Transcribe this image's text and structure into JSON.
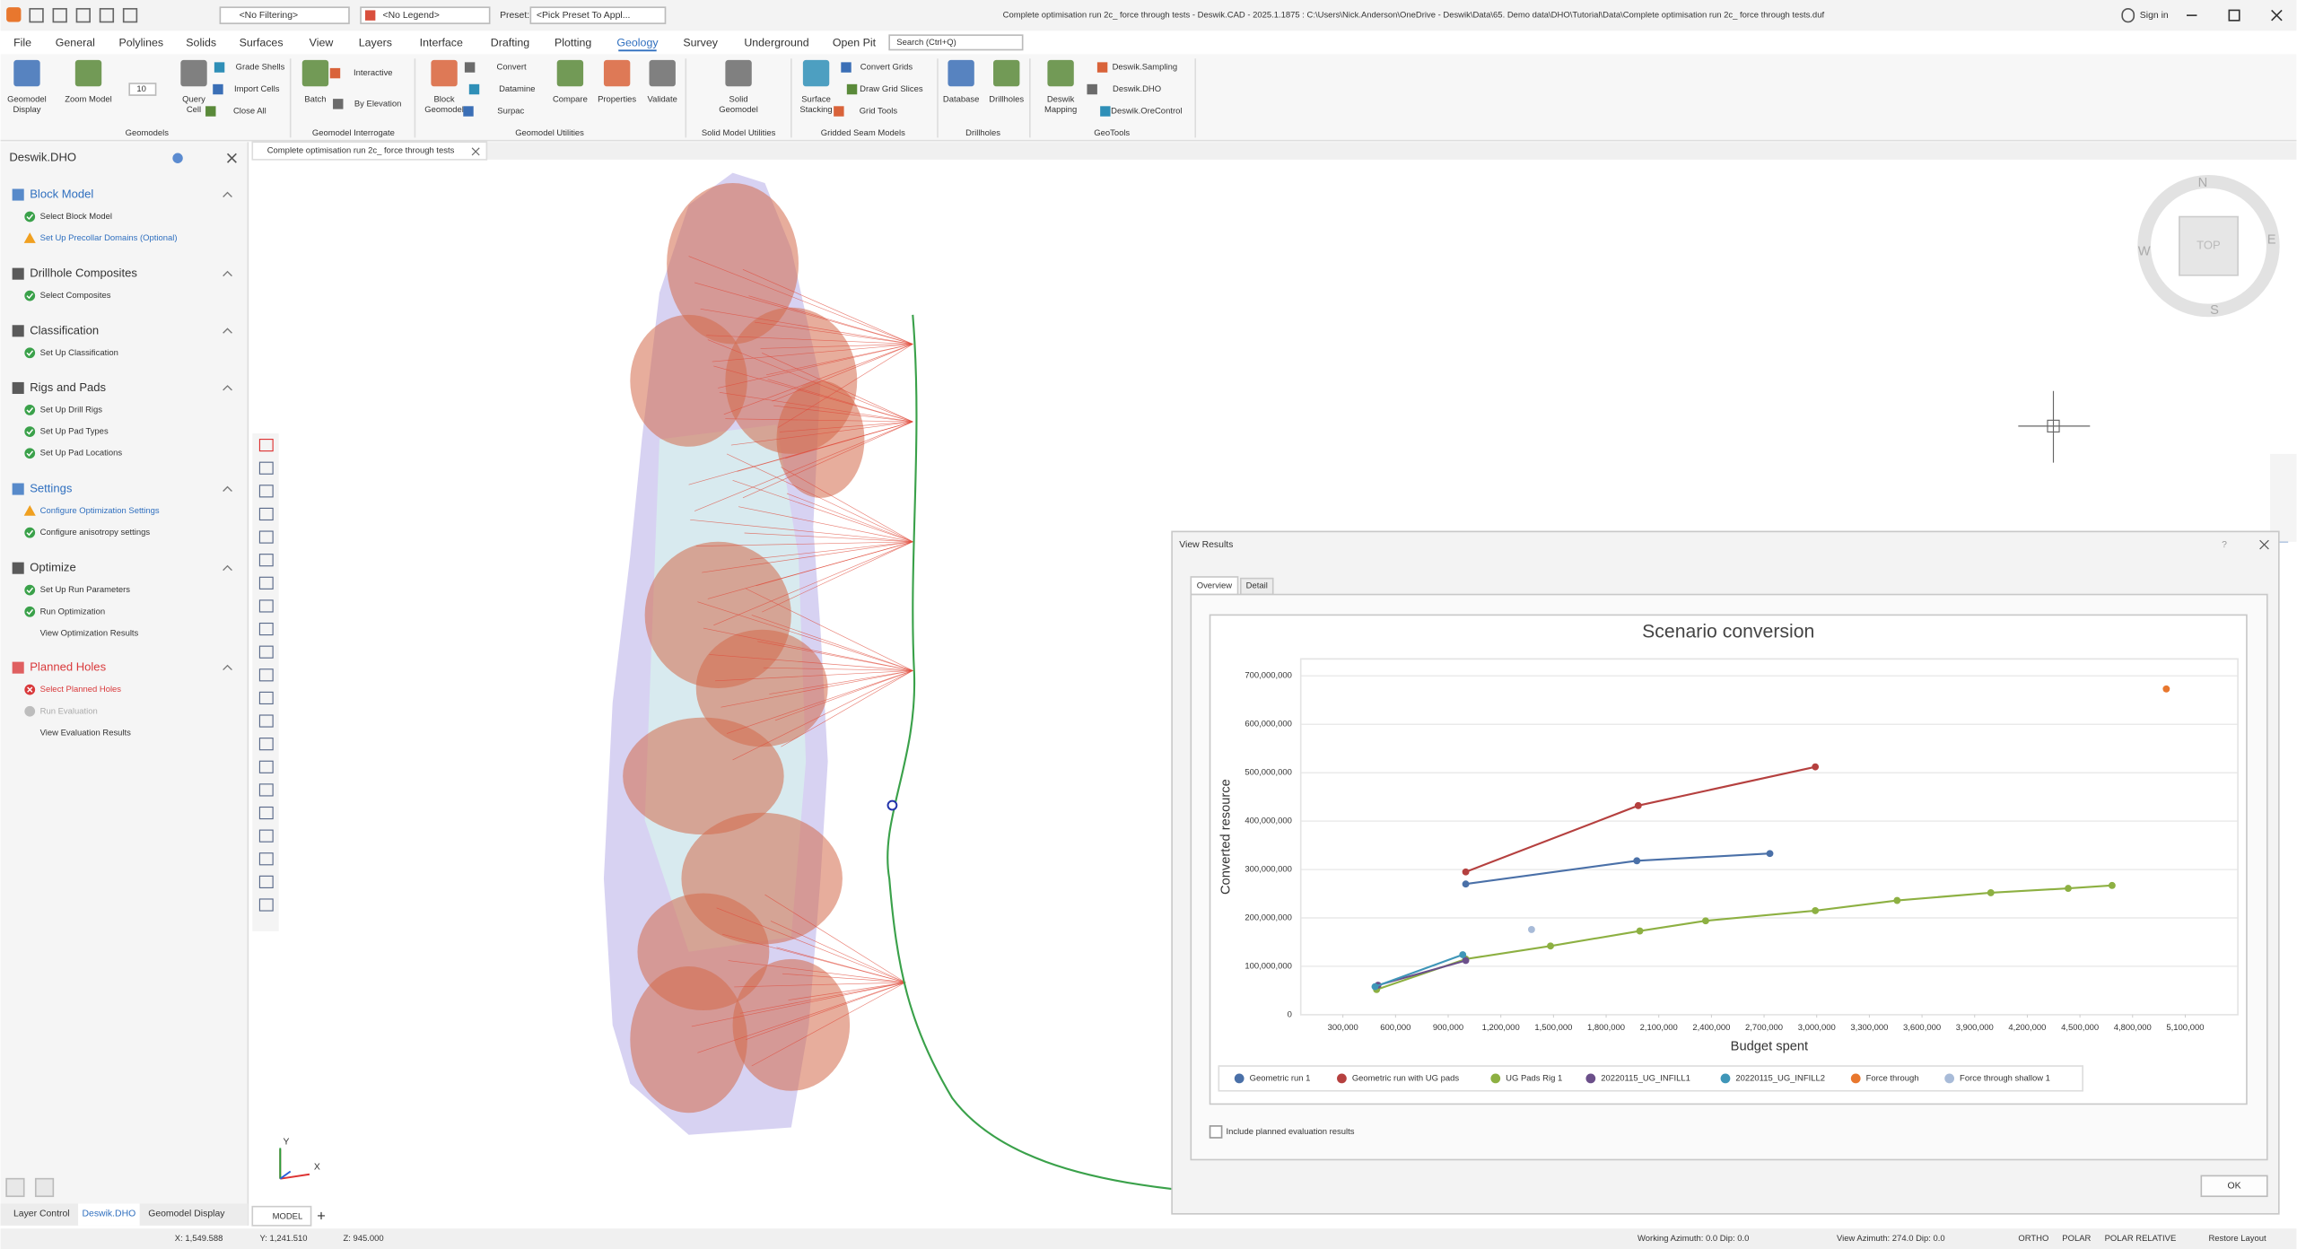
{
  "title_bar": {
    "title": "Complete optimisation run 2c_ force through tests - Deswik.CAD - 2025.1.1875 : C:\\Users\\Nick.Anderson\\OneDrive - Deswik\\Data\\65. Demo data\\DHO\\Tutorial\\Data\\Complete optimisation run 2c_ force through tests.duf",
    "sign_in": "Sign in"
  },
  "quick_access": {
    "filter": "<No Filtering>",
    "legend": "<No Legend>",
    "preset_label": "Preset:",
    "preset": "<Pick Preset To Appl..."
  },
  "menu": {
    "tabs": [
      "File",
      "General",
      "Polylines",
      "Solids",
      "Surfaces",
      "View",
      "Layers",
      "Interface",
      "Drafting",
      "Plotting",
      "Geology",
      "Survey",
      "Underground",
      "Open Pit"
    ],
    "search": "Search (Ctrl+Q)"
  },
  "ribbon": {
    "groups": [
      {
        "label": "Geomodels",
        "buttons": [
          [
            "Geomodel",
            "Display"
          ],
          [
            "Zoom Model"
          ],
          [
            "10"
          ],
          [
            "Query",
            "Cell"
          ],
          [
            "Grade Shells"
          ],
          [
            "Import Cells"
          ],
          [
            "Close All"
          ]
        ]
      },
      {
        "label": "Geomodel Interrogate",
        "buttons": [
          [
            "Batch"
          ],
          [
            "Interactive"
          ],
          [
            "By Elevation"
          ]
        ]
      },
      {
        "label": "Geomodel Utilities",
        "buttons": [
          [
            "Block",
            "Geomodel"
          ],
          [
            "Convert"
          ],
          [
            "Datamine"
          ],
          [
            "Surpac"
          ],
          [
            "Compare"
          ],
          [
            "Properties"
          ],
          [
            "Validate"
          ]
        ]
      },
      {
        "label": "Solid Model Utilities",
        "buttons": [
          [
            "Solid",
            "Geomodel"
          ]
        ]
      },
      {
        "label": "Gridded Seam Models",
        "buttons": [
          [
            "Surface",
            "Stacking"
          ],
          [
            "Convert Grids"
          ],
          [
            "Draw Grid Slices"
          ],
          [
            "Grid Tools"
          ]
        ]
      },
      {
        "label": "Drillholes",
        "buttons": [
          [
            "Database"
          ],
          [
            "Drillholes"
          ]
        ]
      },
      {
        "label": "GeoTools",
        "buttons": [
          [
            "Deswik",
            "Mapping"
          ],
          [
            "Deswik.Sampling"
          ],
          [
            "Deswik.DHO"
          ],
          [
            "Deswik.OreControl"
          ]
        ]
      }
    ]
  },
  "left_panel": {
    "title": "Deswik.DHO",
    "sections": [
      {
        "name": "Block Model",
        "color": "#2f6fbf",
        "items": [
          {
            "label": "Select Block Model",
            "status": "done"
          },
          {
            "label": "Set Up Precollar Domains (Optional)",
            "status": "warning"
          }
        ]
      },
      {
        "name": "Drillhole Composites",
        "color": "#333333",
        "items": [
          {
            "label": "Select Composites",
            "status": "done"
          }
        ]
      },
      {
        "name": "Classification",
        "color": "#333333",
        "items": [
          {
            "label": "Set Up Classification",
            "status": "done"
          }
        ]
      },
      {
        "name": "Rigs and Pads",
        "color": "#333333",
        "items": [
          {
            "label": "Set Up Drill Rigs",
            "status": "done"
          },
          {
            "label": "Set Up Pad Types",
            "status": "done"
          },
          {
            "label": "Set Up Pad Locations",
            "status": "done"
          }
        ]
      },
      {
        "name": "Settings",
        "color": "#2f6fbf",
        "items": [
          {
            "label": "Configure Optimization Settings",
            "status": "warning"
          },
          {
            "label": "Configure anisotropy settings",
            "status": "done"
          }
        ]
      },
      {
        "name": "Optimize",
        "color": "#333333",
        "items": [
          {
            "label": "Set Up Run Parameters",
            "status": "done"
          },
          {
            "label": "Run Optimization",
            "status": "done"
          },
          {
            "label": "View Optimization Results",
            "status": "none"
          }
        ]
      },
      {
        "name": "Planned Holes",
        "color": "#d9393b",
        "items": [
          {
            "label": "Select Planned Holes",
            "status": "error"
          },
          {
            "label": "Run Evaluation",
            "status": "disabled"
          },
          {
            "label": "View Evaluation Results",
            "status": "none"
          }
        ]
      }
    ]
  },
  "document_tab": "Complete optimisation run 2c_ force through tests",
  "bottom_tabs": [
    "Layer Control",
    "Deswik.DHO",
    "Geomodel Display"
  ],
  "model_tab": "MODEL",
  "compass": {
    "n": "N",
    "e": "E",
    "s": "S",
    "w": "W",
    "view": "TOP"
  },
  "axis_triad": {
    "x": "X",
    "y": "Y"
  },
  "status_bar": {
    "x": "X: 1,549.588",
    "y": "Y: 1,241.510",
    "z": "Z: 945.000",
    "working": "Working Azimuth: 0.0 Dip: 0.0",
    "view": "View Azimuth: 274.0 Dip: 0.0",
    "ortho": "ORTHO",
    "polar": "POLAR",
    "polar_relative": "POLAR RELATIVE",
    "restore": "Restore Layout"
  },
  "dialog": {
    "title": "View Results",
    "tabs": [
      "Overview",
      "Detail"
    ],
    "checkbox": "Include planned evaluation results",
    "ok": "OK"
  },
  "chart_data": {
    "type": "line",
    "title": "Scenario conversion",
    "x_label": "Budget spent",
    "y_label": "Converted resource",
    "xlim": [
      60000,
      5400000
    ],
    "xticks": [
      {
        "value": 300000,
        "label": "300,000"
      },
      {
        "value": 600000,
        "label": "600,000"
      },
      {
        "value": 900000,
        "label": "900,000"
      },
      {
        "value": 1200000,
        "label": "1,200,000"
      },
      {
        "value": 1500000,
        "label": "1,500,000"
      },
      {
        "value": 1800000,
        "label": "1,800,000"
      },
      {
        "value": 2100000,
        "label": "2,100,000"
      },
      {
        "value": 2400000,
        "label": "2,400,000"
      },
      {
        "value": 2700000,
        "label": "2,700,000"
      },
      {
        "value": 3000000,
        "label": "3,000,000"
      },
      {
        "value": 3300000,
        "label": "3,300,000"
      },
      {
        "value": 3600000,
        "label": "3,600,000"
      },
      {
        "value": 3900000,
        "label": "3,900,000"
      },
      {
        "value": 4200000,
        "label": "4,200,000"
      },
      {
        "value": 4500000,
        "label": "4,500,000"
      },
      {
        "value": 4800000,
        "label": "4,800,000"
      },
      {
        "value": 5100000,
        "label": "5,100,000"
      }
    ],
    "ylim": [
      0,
      735000000
    ],
    "yticks": [
      0,
      {
        "value": 100000000,
        "label": "100,000,000"
      },
      {
        "value": 200000000,
        "label": "200,000,000"
      },
      {
        "value": 300000000,
        "label": "300,000,000"
      },
      {
        "value": 400000000,
        "label": "400,000,000"
      },
      {
        "value": 500000000,
        "label": "500,000,000"
      },
      {
        "value": 600000000,
        "label": "600,000,000"
      },
      {
        "value": 700000000,
        "label": "700,000,000"
      }
    ],
    "ygrid": true,
    "legend": "bottom",
    "series": [
      {
        "name": "Geometric run 1",
        "color": "#4a70a8",
        "x": [
          1000000,
          1975000,
          2733000
        ],
        "values": [
          270000000,
          318000000,
          333000000
        ]
      },
      {
        "name": "Geometric run with UG pads",
        "color": "#b5403f",
        "x": [
          1000000,
          1983000,
          2992000
        ],
        "values": [
          295000000,
          432000000,
          512000000
        ]
      },
      {
        "name": "UG Pads Rig 1",
        "color": "#8db042",
        "x": [
          492000,
          1000000,
          1483000,
          1992000,
          2367000,
          2992000,
          3458000,
          3992000,
          4433000,
          4683000
        ],
        "values": [
          52000000,
          115000000,
          142000000,
          173000000,
          194000000,
          215000000,
          236000000,
          252000000,
          261000000,
          267000000
        ]
      },
      {
        "name": "20220115_UG_INFILL1",
        "color": "#6b4f8a",
        "x": [
          500000,
          1000000
        ],
        "values": [
          61000000,
          112000000
        ]
      },
      {
        "name": "20220115_UG_INFILL2",
        "color": "#3f96b8",
        "x": [
          483000,
          983000
        ],
        "values": [
          58000000,
          124000000
        ]
      },
      {
        "name": "Force through",
        "color": "#e8772e",
        "x": [
          4992000
        ],
        "values": [
          673000000
        ]
      },
      {
        "name": "Force through shallow 1",
        "color": "#a8bbd8",
        "x": [
          1375000
        ],
        "values": [
          176000000
        ]
      }
    ]
  }
}
